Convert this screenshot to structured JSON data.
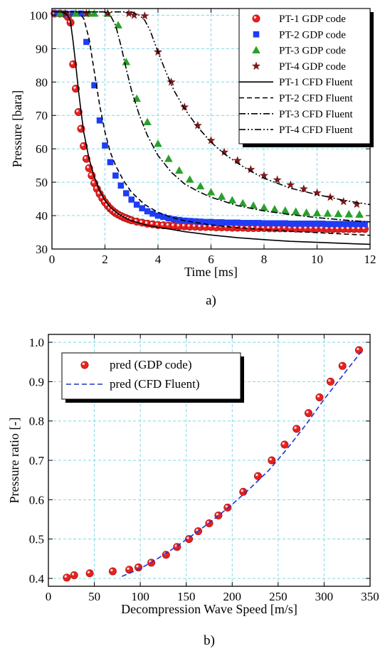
{
  "colors": {
    "grid": "#7fd8e6",
    "red": "#e8201e",
    "blue": "#1f3cf5",
    "green": "#2aa02a",
    "brown": "#7a1a1a",
    "dashblue": "#2233cc"
  },
  "chart_data": [
    {
      "type": "line",
      "caption": "a)",
      "xlabel": "Time [ms]",
      "ylabel": "Pressure [bara]",
      "xlim": [
        0,
        12
      ],
      "ylim": [
        30,
        102
      ],
      "xticks": [
        0,
        2,
        4,
        6,
        8,
        10,
        12
      ],
      "yticks": [
        30,
        40,
        50,
        60,
        70,
        80,
        90,
        100
      ],
      "grid": true,
      "legend_position": "top-right",
      "series": [
        {
          "name": "PT-1 GDP code",
          "kind": "scatter",
          "marker": "circle",
          "color": "#e8201e",
          "x": [
            0.1,
            0.3,
            0.5,
            0.6,
            0.7,
            0.8,
            0.9,
            1.0,
            1.1,
            1.2,
            1.3,
            1.4,
            1.5,
            1.6,
            1.7,
            1.8,
            1.9,
            2.0,
            2.1,
            2.2,
            2.3,
            2.4,
            2.5,
            2.6,
            2.7,
            2.8,
            2.9,
            3.0,
            3.2,
            3.4,
            3.6,
            3.8,
            4.0,
            4.2,
            4.4,
            4.6,
            4.8,
            5.0,
            5.2,
            5.4,
            5.6,
            5.8,
            6.0,
            6.2,
            6.4,
            6.6,
            6.8,
            7.0,
            7.2,
            7.4,
            7.6,
            7.8,
            8.0,
            8.2,
            8.4,
            8.6,
            8.8,
            9.0,
            9.2,
            9.4,
            9.6,
            9.8,
            10.0,
            10.2,
            10.4,
            10.6,
            10.8,
            11.0,
            11.2,
            11.4,
            11.6,
            11.8
          ],
          "y": [
            100.5,
            100.5,
            100.3,
            99.5,
            97.8,
            85.3,
            78,
            71,
            66,
            60.8,
            57,
            54.2,
            52,
            49.7,
            48,
            46.5,
            45.2,
            44,
            43,
            42.1,
            41.4,
            40.8,
            40.3,
            39.9,
            39.5,
            39.2,
            38.9,
            38.6,
            38.2,
            37.9,
            37.6,
            37.4,
            37.2,
            37.1,
            37,
            36.9,
            36.8,
            36.8,
            36.7,
            36.7,
            36.6,
            36.6,
            36.6,
            36.5,
            36.5,
            36.5,
            36.4,
            36.4,
            36.4,
            36.3,
            36.3,
            36.3,
            36.3,
            36.2,
            36.2,
            36.2,
            36.2,
            36.2,
            36.1,
            36.1,
            36.1,
            36.1,
            36.1,
            36.1,
            36,
            36,
            36,
            36,
            36,
            36,
            36,
            36
          ]
        },
        {
          "name": "PT-2 GDP code",
          "kind": "scatter",
          "marker": "square",
          "color": "#1f3cf5",
          "x": [
            0.2,
            0.5,
            0.8,
            1.1,
            1.3,
            1.6,
            1.8,
            2.0,
            2.2,
            2.4,
            2.6,
            2.8,
            3.0,
            3.2,
            3.4,
            3.6,
            3.8,
            4.0,
            4.2,
            4.4,
            4.6,
            4.8,
            5.0,
            5.2,
            5.4,
            5.6,
            5.8,
            6.0,
            6.2,
            6.4,
            6.6,
            6.8,
            7.0,
            7.2,
            7.4,
            7.6,
            7.8,
            8.0,
            8.2,
            8.4,
            8.6,
            8.8,
            9.0,
            9.2,
            9.4,
            9.6,
            9.8,
            10.0,
            10.2,
            10.4,
            10.6,
            10.8,
            11.0,
            11.2,
            11.4,
            11.6,
            11.8
          ],
          "y": [
            100.5,
            100.5,
            100.5,
            100.5,
            92,
            79,
            68.5,
            61,
            56,
            52,
            49,
            46.7,
            44.8,
            43.3,
            42.2,
            41.3,
            40.6,
            40,
            39.6,
            39.2,
            38.9,
            38.7,
            38.5,
            38.4,
            38.3,
            38.2,
            38.1,
            38.1,
            38,
            38,
            37.9,
            37.9,
            37.9,
            37.8,
            37.8,
            37.8,
            37.8,
            37.7,
            37.7,
            37.7,
            37.7,
            37.7,
            37.6,
            37.6,
            37.6,
            37.6,
            37.6,
            37.6,
            37.6,
            37.5,
            37.5,
            37.5,
            37.5,
            37.5,
            37.5,
            37.5,
            37.5
          ]
        },
        {
          "name": "PT-3 GDP code",
          "kind": "scatter",
          "marker": "triangle",
          "color": "#2aa02a",
          "x": [
            0.3,
            0.9,
            1.4,
            1.6,
            2.1,
            2.5,
            2.8,
            3.2,
            3.6,
            4.0,
            4.4,
            4.8,
            5.2,
            5.6,
            6.0,
            6.4,
            6.8,
            7.2,
            7.6,
            8.0,
            8.4,
            8.8,
            9.2,
            9.6,
            10.0,
            10.4,
            10.8,
            11.2,
            11.6
          ],
          "y": [
            100.5,
            100.5,
            100.5,
            100.5,
            100.5,
            97,
            86,
            75,
            68,
            61.5,
            57,
            53.5,
            50.8,
            48.8,
            47,
            45.7,
            44.6,
            43.7,
            43,
            42.4,
            41.9,
            41.5,
            41.2,
            40.9,
            40.7,
            40.6,
            40.5,
            40.4,
            40.3
          ]
        },
        {
          "name": "PT-4 GDP code",
          "kind": "scatter",
          "marker": "star",
          "color": "#7a1a1a",
          "x": [
            0.5,
            1.3,
            2.1,
            2.9,
            3.1,
            3.5,
            4.0,
            4.5,
            5.0,
            5.5,
            6.0,
            6.5,
            7.0,
            7.5,
            8.0,
            8.5,
            9.0,
            9.5,
            10.0,
            10.5,
            11.0,
            11.5
          ],
          "y": [
            100.5,
            100.5,
            100.5,
            100.5,
            100,
            99.8,
            89,
            80,
            72.5,
            67,
            62.5,
            59,
            56.5,
            53.8,
            52,
            50.7,
            49.2,
            48,
            46.8,
            45.5,
            44.2,
            43.4
          ]
        },
        {
          "name": "PT-1 CFD Fluent",
          "kind": "line",
          "dash": "solid",
          "x": [
            0,
            0.4,
            0.6,
            0.7,
            0.8,
            0.9,
            1.0,
            1.1,
            1.2,
            1.4,
            1.6,
            1.8,
            2.0,
            2.2,
            2.5,
            2.8,
            3.0,
            3.5,
            4.0,
            4.5,
            5.0,
            6.0,
            7.0,
            8.0,
            9.0,
            10.0,
            11.0,
            12.0
          ],
          "y": [
            101,
            101,
            100,
            98,
            92,
            85,
            77.5,
            71,
            65,
            57,
            51.5,
            47.5,
            44.5,
            42.5,
            40.5,
            39.2,
            38.5,
            37.3,
            36.5,
            35.9,
            35.2,
            34.2,
            33.4,
            32.8,
            32.3,
            32,
            31.7,
            31.4
          ]
        },
        {
          "name": "PT-2 CFD Fluent",
          "kind": "line",
          "dash": "dash",
          "x": [
            0,
            1.0,
            1.2,
            1.4,
            1.6,
            1.8,
            2.0,
            2.2,
            2.4,
            2.7,
            3.0,
            3.5,
            4.0,
            4.5,
            5.0,
            6.0,
            7.0,
            8.0,
            9.0,
            10.0,
            11.0,
            12.0
          ],
          "y": [
            101,
            101,
            99,
            93,
            83,
            73,
            65,
            59,
            55,
            50.5,
            47,
            43.3,
            41,
            39.5,
            38.5,
            37.2,
            36.4,
            35.8,
            35.3,
            34.9,
            34.5,
            34.1
          ]
        },
        {
          "name": "PT-3 CFD Fluent",
          "kind": "line",
          "dash": "dashdot",
          "x": [
            0,
            2.0,
            2.2,
            2.4,
            2.6,
            2.8,
            3.0,
            3.3,
            3.6,
            4.0,
            4.5,
            5.0,
            5.5,
            6.0,
            7.0,
            8.0,
            9.0,
            10.0,
            11.0,
            12.0
          ],
          "y": [
            101,
            101,
            100,
            97,
            91,
            84,
            77.5,
            70,
            64,
            58,
            53,
            49.5,
            47.3,
            45.5,
            43,
            41.4,
            40.3,
            39.4,
            38.7,
            38.1
          ]
        },
        {
          "name": "PT-4 CFD Fluent",
          "kind": "line",
          "dash": "dashdotdot",
          "x": [
            0,
            3.0,
            3.3,
            3.5,
            3.7,
            4.0,
            4.3,
            4.6,
            5.0,
            5.5,
            6.0,
            6.5,
            7.0,
            7.5,
            8.0,
            9.0,
            10.0,
            11.0,
            12.0
          ],
          "y": [
            101,
            101,
            100,
            98.5,
            95.5,
            89,
            83,
            77.5,
            72,
            66.5,
            62,
            58.5,
            55.7,
            53.3,
            51.2,
            48.2,
            46.3,
            44.6,
            43.3
          ]
        }
      ]
    },
    {
      "type": "scatter",
      "caption": "b)",
      "xlabel": "Decompression Wave Speed [m/s]",
      "ylabel": "Pressure ratio [-]",
      "xlim": [
        0,
        350
      ],
      "ylim": [
        0.38,
        1.02
      ],
      "xticks": [
        0,
        50,
        100,
        150,
        200,
        250,
        300,
        350
      ],
      "yticks": [
        0.4,
        0.5,
        0.6,
        0.7,
        0.8,
        0.9,
        1.0
      ],
      "ytick_labels": [
        "0.4",
        "0.5",
        "0.6",
        "0.7",
        "0.8",
        "0.9",
        "1.0"
      ],
      "grid": true,
      "legend_position": "top-left",
      "series": [
        {
          "name": "pred (GDP code)",
          "kind": "scatter",
          "marker": "circle",
          "color": "#e8201e",
          "x": [
            20,
            28,
            45,
            70,
            88,
            98,
            112,
            128,
            140,
            153,
            163,
            175,
            185,
            195,
            212,
            228,
            243,
            257,
            270,
            283,
            295,
            307,
            320,
            338
          ],
          "y": [
            0.402,
            0.408,
            0.413,
            0.418,
            0.422,
            0.428,
            0.44,
            0.46,
            0.48,
            0.5,
            0.52,
            0.54,
            0.56,
            0.58,
            0.62,
            0.66,
            0.7,
            0.74,
            0.78,
            0.82,
            0.86,
            0.9,
            0.94,
            0.98
          ]
        },
        {
          "name": "pred (CFD Fluent)",
          "kind": "line",
          "dash": "dash",
          "color": "#2233cc",
          "x": [
            80,
            100,
            120,
            140,
            160,
            180,
            200,
            220,
            240,
            260,
            280,
            300,
            320,
            340
          ],
          "y": [
            0.405,
            0.425,
            0.452,
            0.482,
            0.515,
            0.55,
            0.588,
            0.63,
            0.675,
            0.73,
            0.79,
            0.855,
            0.915,
            0.975
          ]
        }
      ]
    }
  ]
}
